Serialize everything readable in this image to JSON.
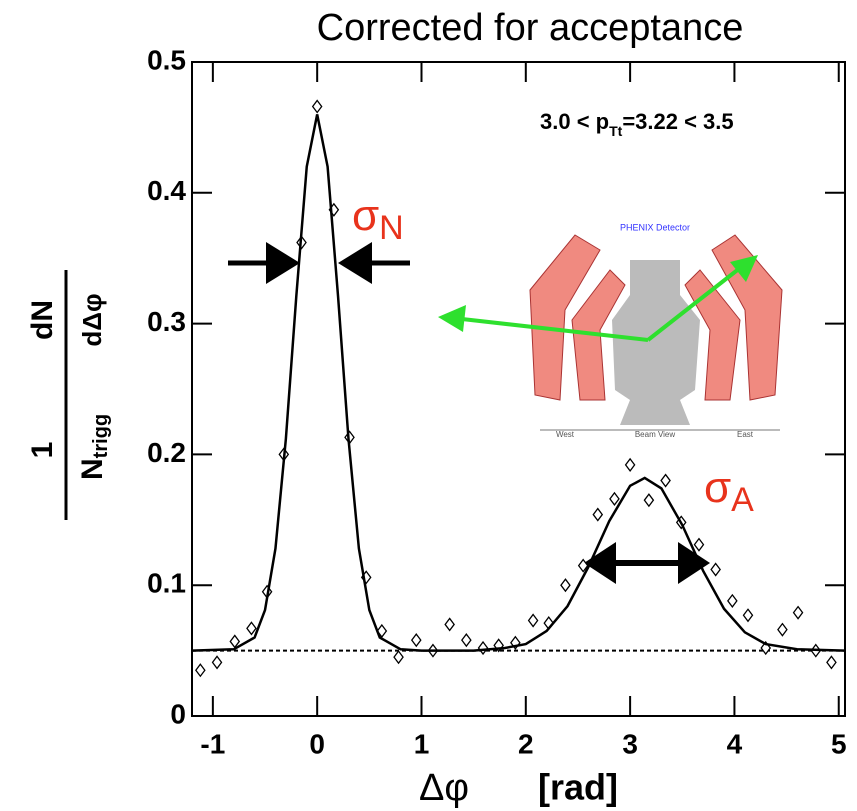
{
  "chart_data": {
    "type": "scatter",
    "title": "Corrected for acceptance",
    "annotation": {
      "pre": "3.0 < p",
      "sub": "Tt",
      "post": "=3.22 < 3.5"
    },
    "near_label": {
      "sigma": "σ",
      "sub": "N"
    },
    "away_label": {
      "sigma": "σ",
      "sub": "A"
    },
    "xlabel": {
      "var": "Δφ",
      "unit": "[rad]"
    },
    "ylabel": {
      "num1": "1",
      "den1": "N",
      "den1_sub": "trigg",
      "num2": "dN",
      "den2": "dΔφ"
    },
    "inset": {
      "title": "PHENIX Detector",
      "west": "West",
      "view": "Beam View",
      "east": "East"
    },
    "xlim": [
      -1.2,
      5.06
    ],
    "xticks": [
      -1,
      0,
      1,
      2,
      3,
      4,
      5
    ],
    "ylim": [
      0,
      0.5
    ],
    "yticks": [
      0,
      0.1,
      0.2,
      0.3,
      0.4,
      0.5
    ],
    "baseline": 0.05,
    "series": [
      {
        "name": "data",
        "color": "#000000",
        "x": [
          -1.12,
          -0.96,
          -0.79,
          -0.63,
          -0.48,
          -0.32,
          -0.15,
          0,
          0.16,
          0.31,
          0.47,
          0.62,
          0.78,
          0.95,
          1.11,
          1.27,
          1.43,
          1.59,
          1.74,
          1.9,
          2.07,
          2.22,
          2.38,
          2.55,
          2.69,
          2.85,
          3.0,
          3.18,
          3.34,
          3.49,
          3.66,
          3.82,
          3.98,
          4.13,
          4.3,
          4.46,
          4.61,
          4.78,
          4.93
        ],
        "values": [
          0.035,
          0.041,
          0.057,
          0.067,
          0.095,
          0.2,
          0.362,
          0.466,
          0.387,
          0.213,
          0.106,
          0.065,
          0.045,
          0.058,
          0.05,
          0.07,
          0.058,
          0.052,
          0.054,
          0.056,
          0.073,
          0.071,
          0.1,
          0.115,
          0.154,
          0.166,
          0.192,
          0.165,
          0.18,
          0.148,
          0.131,
          0.112,
          0.088,
          0.077,
          0.052,
          0.066,
          0.079,
          0.05,
          0.041
        ]
      },
      {
        "name": "fit",
        "color": "#000000",
        "x": [
          -1.2,
          -0.8,
          -0.6,
          -0.5,
          -0.4,
          -0.3,
          -0.2,
          -0.1,
          0,
          0.1,
          0.2,
          0.3,
          0.4,
          0.5,
          0.6,
          0.8,
          1.0,
          1.5,
          1.8,
          2.0,
          2.2,
          2.4,
          2.6,
          2.8,
          3.0,
          3.14,
          3.3,
          3.5,
          3.7,
          3.9,
          4.1,
          4.3,
          4.6,
          5.06
        ],
        "values": [
          0.05,
          0.051,
          0.06,
          0.081,
          0.128,
          0.212,
          0.321,
          0.42,
          0.46,
          0.42,
          0.321,
          0.212,
          0.128,
          0.081,
          0.06,
          0.051,
          0.05,
          0.05,
          0.052,
          0.055,
          0.065,
          0.084,
          0.114,
          0.149,
          0.176,
          0.182,
          0.174,
          0.146,
          0.111,
          0.082,
          0.064,
          0.055,
          0.051,
          0.05
        ]
      }
    ]
  }
}
